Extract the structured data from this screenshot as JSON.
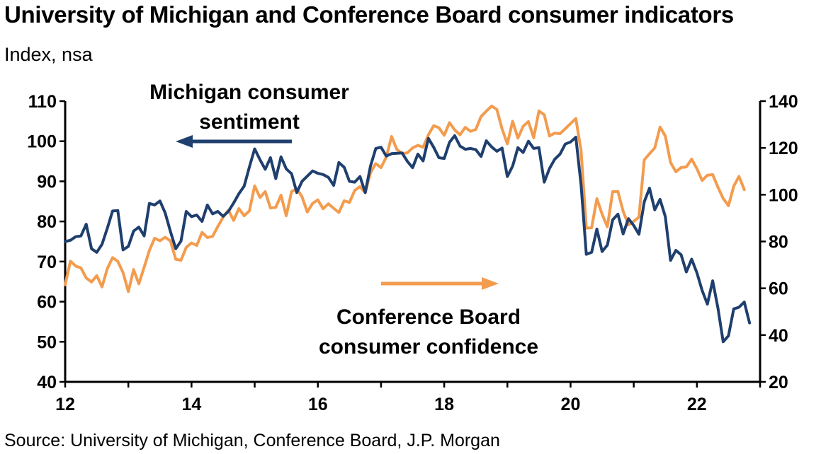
{
  "title": "University of Michigan and Conference Board consumer indicators",
  "subtitle": "Index, nsa",
  "source": "Source: University of Michigan, Conference Board, J.P. Morgan",
  "colors": {
    "michigan": "#1F3F6E",
    "conference": "#F39C4E",
    "axis": "#000000"
  },
  "chart_data": {
    "type": "line",
    "x_ticks": [
      12,
      14,
      16,
      18,
      20,
      22
    ],
    "x_tick_labels": [
      "12",
      "14",
      "16",
      "18",
      "20",
      "22"
    ],
    "xlim": [
      12,
      23
    ],
    "ylim_left": [
      40,
      110
    ],
    "ylim_right": [
      20,
      140
    ],
    "y_ticks_left": [
      40,
      50,
      60,
      70,
      80,
      90,
      100,
      110
    ],
    "y_ticks_right": [
      20,
      40,
      60,
      80,
      100,
      120,
      140
    ],
    "annotations": {
      "michigan_line1": "Michigan consumer",
      "michigan_line2": "sentiment",
      "conference_line1": "Conference Board",
      "conference_line2": "consumer confidence"
    },
    "series": [
      {
        "name": "Michigan consumer sentiment",
        "axis": "left",
        "start": 12.0,
        "step": 0.08333,
        "values": [
          75,
          75.3,
          76.2,
          76.4,
          79.3,
          73.2,
          72.3,
          74.3,
          78.3,
          82.6,
          82.7,
          72.9,
          73.8,
          77.6,
          78.6,
          76.4,
          84.5,
          84.1,
          85.1,
          82.1,
          77.5,
          73.2,
          75.1,
          82.5,
          81.2,
          81.6,
          80,
          84.1,
          81.9,
          82.5,
          81.3,
          82.5,
          84.6,
          86.9,
          88.8,
          93.6,
          98.1,
          95.4,
          93,
          95.9,
          90.7,
          96.1,
          93.1,
          91.9,
          87.2,
          90,
          91.3,
          92.6,
          92,
          91.7,
          91,
          89,
          94.7,
          93.5,
          90,
          89.8,
          91.2,
          87.2,
          93.8,
          98.2,
          98.5,
          96.3,
          96.9,
          97,
          97.1,
          95,
          93.4,
          96.8,
          95.1,
          100.7,
          98.5,
          95.9,
          95.7,
          99.7,
          101.4,
          98.8,
          98,
          98.2,
          97.9,
          96.2,
          100.1,
          98.6,
          97.5,
          98.3,
          91.2,
          93.8,
          98.4,
          97.2,
          100,
          98.2,
          98.4,
          89.8,
          93.2,
          95.5,
          96.8,
          99.3,
          99.8,
          101,
          89.1,
          71.8,
          72.3,
          78.1,
          72.5,
          74.1,
          80.4,
          81.8,
          76.9,
          80.7,
          79,
          76.8,
          84.9,
          88.3,
          82.9,
          85.5,
          81.2,
          70.3,
          72.8,
          71.7,
          67.4,
          70.6,
          67.2,
          62.8,
          59.4,
          65.2,
          58.4,
          50,
          51.5,
          58.2,
          58.6,
          59.9,
          54.7
        ]
      },
      {
        "name": "Conference Board consumer confidence",
        "axis": "right",
        "start": 12.0,
        "step": 0.08333,
        "values": [
          61.5,
          71.6,
          69.5,
          68.7,
          64.4,
          62.7,
          65.4,
          60.6,
          68.4,
          73.1,
          71.5,
          66.7,
          58.6,
          68,
          61.9,
          69,
          76.2,
          81.4,
          80.3,
          81.8,
          80.2,
          72.4,
          72,
          77.5,
          79.4,
          78.3,
          83.9,
          81.7,
          82.2,
          86.4,
          90.3,
          93.4,
          89,
          94.1,
          91,
          93.1,
          103.8,
          98.8,
          101.3,
          94.3,
          94.6,
          99.8,
          91,
          101.3,
          102.6,
          99.1,
          92.6,
          96.3,
          97.8,
          94,
          96.1,
          94.2,
          92.4,
          97.4,
          96.7,
          101.8,
          103.5,
          100.8,
          109.4,
          113.3,
          111.6,
          116.1,
          124.9,
          119.4,
          117.6,
          117.9,
          120,
          121.1,
          120.3,
          125.6,
          129.5,
          128.6,
          125.4,
          130.8,
          127.7,
          125.6,
          128.8,
          127.1,
          127.9,
          133.4,
          135.7,
          137.9,
          136.4,
          128.1,
          121.7,
          131.4,
          124.2,
          129.2,
          131.3,
          124.3,
          135.8,
          134.2,
          125.1,
          126.3,
          126.1,
          128.2,
          130.4,
          132.6,
          118.8,
          85.7,
          85.9,
          98.3,
          91.7,
          86.3,
          101.3,
          101.4,
          92.9,
          87.1,
          88.6,
          90.4,
          114.9,
          117.5,
          120,
          128.9,
          125.1,
          113.8,
          109.8,
          111.6,
          111.9,
          115.2,
          111.1,
          106.1,
          108.3,
          108.6,
          103.2,
          98.4,
          95.3,
          103.6,
          107.8,
          102.2
        ]
      }
    ]
  }
}
